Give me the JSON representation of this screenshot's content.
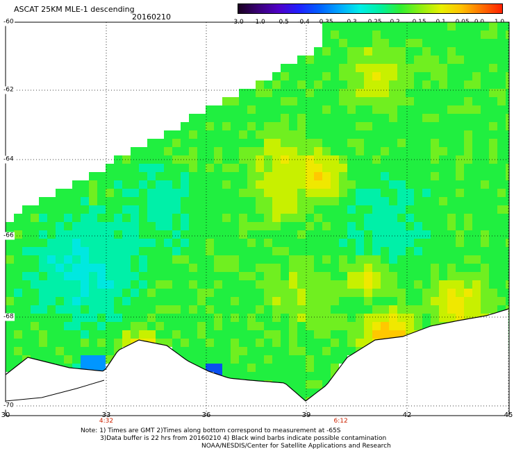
{
  "header": {
    "title": "ASCAT 25KM MLE-1 descending",
    "date": "20160210"
  },
  "colorbar": {
    "labels": [
      "-3.0",
      "-1.0",
      "-0.5",
      "-0.4",
      "-0.35",
      "-0.3",
      "-0.25",
      "-0.2",
      "-0.15",
      "-0.1",
      "-0.05",
      "0.0",
      "1.0"
    ],
    "colors": [
      "#1a0020",
      "#3a0078",
      "#4f00c8",
      "#2020ff",
      "#0060ff",
      "#00a8ff",
      "#00eee8",
      "#00f0a0",
      "#30ef30",
      "#90ef10",
      "#e8f000",
      "#ffc000",
      "#ff7000",
      "#ff2000"
    ]
  },
  "map": {
    "lat_labels": [
      "-60",
      "-62",
      "-64",
      "-66",
      "-68",
      "-70"
    ],
    "lon_labels": [
      "30",
      "33",
      "36",
      "39",
      "42",
      "45"
    ],
    "time_labels": [
      {
        "lon": "33",
        "text": "4:32"
      },
      {
        "lon": "40",
        "text": "6:12"
      }
    ],
    "land_color": "#ffffff",
    "coastline_color": "#000000"
  },
  "notes": {
    "line1": "Note: 1) Times are GMT 2)Times along bottom correspond to measurement at -65S",
    "line2": "3)Data buffer is 22 hrs from 20160210 4) Black wind barbs indicate possible contamination",
    "line3": "NOAA/NESDIS/Center for Satellite Applications and Research"
  }
}
